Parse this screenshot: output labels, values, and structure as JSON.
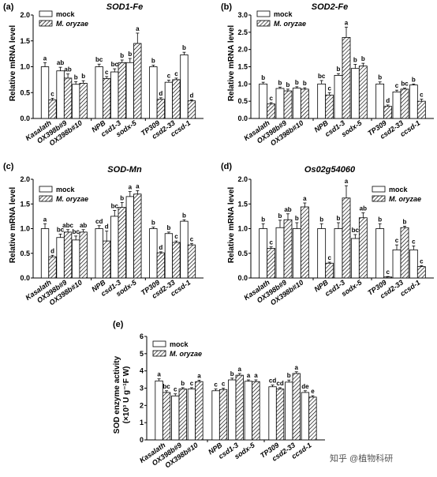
{
  "colors": {
    "mock": "#ffffff",
    "treated_hatch": "#000000",
    "axis": "#000000",
    "error": "#000000"
  },
  "legend": {
    "mock": "mock",
    "treated": "M. oryzae"
  },
  "watermark": "知乎 @植物科研",
  "chart_data": [
    {
      "panel": "(a)",
      "type": "bar",
      "title": "SOD1-Fe",
      "ylabel": "Relative mRNA level",
      "ylim": [
        0,
        2.0
      ],
      "yticks": [
        "0.0",
        "0.5",
        "1.0",
        "1.5",
        "2.0"
      ],
      "legend_position": "top-left",
      "categories": [
        "Kasalath",
        "OX398b#9",
        "OX398b#10",
        "NPB",
        "csd1-3",
        "sodx-5",
        "TP309",
        "csd2-33",
        "ccsd-1"
      ],
      "groups": [
        [
          0,
          1,
          2
        ],
        [
          3,
          4,
          5
        ],
        [
          6,
          7,
          8
        ]
      ],
      "series": [
        {
          "name": "mock",
          "values": [
            1.0,
            0.92,
            0.66,
            1.0,
            0.9,
            1.08,
            1.0,
            0.7,
            1.23
          ],
          "errors": [
            0.08,
            0.07,
            0.05,
            0.05,
            0.06,
            0.08,
            0.03,
            0.04,
            0.05
          ],
          "letters": [
            "a",
            "ab",
            "b",
            "bc",
            "bc",
            "b",
            "b",
            "c",
            "b"
          ]
        },
        {
          "name": "M. oryzae",
          "values": [
            0.36,
            0.78,
            0.68,
            0.77,
            1.08,
            1.45,
            0.37,
            0.75,
            0.34
          ],
          "errors": [
            0.03,
            0.08,
            0.05,
            0.04,
            0.05,
            0.2,
            0.03,
            0.03,
            0.02
          ],
          "letters": [
            "c",
            "ab",
            "b",
            "c",
            "b",
            "a",
            "d",
            "c",
            "d"
          ]
        }
      ]
    },
    {
      "panel": "(b)",
      "type": "bar",
      "title": "SOD2-Fe",
      "ylabel": "Relative mRNA level",
      "ylim": [
        0,
        3.0
      ],
      "yticks": [
        "0.0",
        "0.5",
        "1.0",
        "1.5",
        "2.0",
        "2.5",
        "3.0"
      ],
      "legend_position": "top-left",
      "categories": [
        "Kasalath",
        "OX398b#9",
        "OX398b#10",
        "NPB",
        "csd1-3",
        "sodx-5",
        "TP309",
        "csd2-33",
        "ccsd-1"
      ],
      "groups": [
        [
          0,
          1,
          2
        ],
        [
          3,
          4,
          5
        ],
        [
          6,
          7,
          8
        ]
      ],
      "series": [
        {
          "name": "mock",
          "values": [
            1.0,
            0.87,
            0.88,
            1.0,
            1.25,
            1.45,
            1.0,
            0.77,
            0.97
          ],
          "errors": [
            0.05,
            0.04,
            0.04,
            0.1,
            0.05,
            0.12,
            0.06,
            0.05,
            0.03
          ],
          "letters": [
            "b",
            "b",
            "b",
            "bc",
            "b",
            "b",
            "b",
            "c",
            "b"
          ]
        },
        {
          "name": "M. oryzae",
          "values": [
            0.42,
            0.8,
            0.85,
            0.68,
            2.35,
            1.52,
            0.35,
            0.85,
            0.5
          ],
          "errors": [
            0.04,
            0.05,
            0.04,
            0.07,
            0.3,
            0.08,
            0.04,
            0.03,
            0.06
          ],
          "letters": [
            "c",
            "b",
            "b",
            "c",
            "a",
            "b",
            "d",
            "bc",
            "c"
          ]
        }
      ]
    },
    {
      "panel": "(c)",
      "type": "bar",
      "title": "SOD-Mn",
      "ylabel": "Relative mRNA level",
      "ylim": [
        0,
        2.0
      ],
      "yticks": [
        "0.0",
        "0.5",
        "1.0",
        "1.5",
        "2.0"
      ],
      "legend_position": "top-left",
      "categories": [
        "Kasalath",
        "OX398b#9",
        "OX398b#10",
        "NPB",
        "csd1-3",
        "sodx-5",
        "TP309",
        "csd2-33",
        "ccsd-1"
      ],
      "groups": [
        [
          0,
          1,
          2
        ],
        [
          3,
          4,
          5
        ],
        [
          6,
          7,
          8
        ]
      ],
      "series": [
        {
          "name": "mock",
          "values": [
            1.0,
            0.82,
            0.77,
            1.0,
            1.25,
            1.65,
            1.0,
            0.9,
            1.15
          ],
          "errors": [
            0.1,
            0.07,
            0.08,
            0.06,
            0.12,
            0.1,
            0.03,
            0.03,
            0.03
          ],
          "letters": [
            "a",
            "bc",
            "bc",
            "cd",
            "bc",
            "a",
            "b",
            "b",
            "b"
          ]
        },
        {
          "name": "M. oryzae",
          "values": [
            0.43,
            0.93,
            0.93,
            0.75,
            1.43,
            1.7,
            0.51,
            0.72,
            0.67
          ],
          "errors": [
            0.03,
            0.05,
            0.05,
            0.2,
            0.1,
            0.07,
            0.02,
            0.03,
            0.03
          ],
          "letters": [
            "d",
            "abc",
            "ab",
            "d",
            "b",
            "a",
            "d",
            "c",
            "c"
          ]
        }
      ]
    },
    {
      "panel": "(d)",
      "type": "bar",
      "title": "Os02g54060",
      "ylabel": "Relative mRNA level",
      "ylim": [
        0,
        2.0
      ],
      "yticks": [
        "0.0",
        "0.5",
        "1.0",
        "1.5",
        "2.0"
      ],
      "legend_position": "top-right",
      "categories": [
        "Kasalath",
        "OX398b#9",
        "OX398b#10",
        "NPB",
        "csd1-3",
        "sodx-5",
        "TP309",
        "csd2-33",
        "ccsd-1"
      ],
      "groups": [
        [
          0,
          1,
          2
        ],
        [
          3,
          4,
          5
        ],
        [
          6,
          7,
          8
        ]
      ],
      "series": [
        {
          "name": "mock",
          "values": [
            1.0,
            1.02,
            1.0,
            1.0,
            1.0,
            0.8,
            1.0,
            0.57,
            0.57
          ],
          "errors": [
            0.1,
            0.15,
            0.12,
            0.1,
            0.12,
            0.08,
            0.1,
            0.1,
            0.08
          ],
          "letters": [
            "b",
            "b",
            "b",
            "b",
            "b",
            "bc",
            "b",
            "c",
            "c"
          ]
        },
        {
          "name": "M. oryzae",
          "values": [
            0.6,
            1.18,
            1.44,
            0.3,
            1.62,
            1.22,
            0.02,
            1.02,
            0.23
          ],
          "errors": [
            0.03,
            0.12,
            0.08,
            0.02,
            0.25,
            0.1,
            0.01,
            0.03,
            0.02
          ],
          "letters": [
            "c",
            "ab",
            "a",
            "c",
            "a",
            "ab",
            "c",
            "b",
            "c"
          ]
        }
      ]
    },
    {
      "panel": "(e)",
      "type": "bar",
      "title": "",
      "ylabel": "SOD enzyme activity (×10³ U g⁻¹F W)",
      "ylim": [
        0,
        6
      ],
      "yticks": [
        "0",
        "1",
        "2",
        "3",
        "4",
        "5",
        "6"
      ],
      "legend_position": "top-left",
      "categories": [
        "Kasalath",
        "OX398b#9",
        "OX398b#10",
        "NPB",
        "csd1-3",
        "sodx-5",
        "TP309",
        "csd2-33",
        "ccsd-1"
      ],
      "groups": [
        [
          0,
          1,
          2
        ],
        [
          3,
          4,
          5
        ],
        [
          6,
          7,
          8
        ]
      ],
      "series": [
        {
          "name": "mock",
          "values": [
            3.42,
            2.55,
            2.95,
            2.85,
            3.48,
            3.4,
            3.08,
            3.35,
            2.75
          ],
          "errors": [
            0.12,
            0.12,
            0.08,
            0.1,
            0.1,
            0.08,
            0.1,
            0.12,
            0.1
          ],
          "letters": [
            "a",
            "c",
            "c",
            "c",
            "b",
            "a",
            "cd",
            "b",
            "de"
          ]
        },
        {
          "name": "M. oryzae",
          "values": [
            2.75,
            2.95,
            3.38,
            2.92,
            3.75,
            3.38,
            2.95,
            3.85,
            2.48
          ],
          "errors": [
            0.1,
            0.08,
            0.08,
            0.08,
            0.1,
            0.1,
            0.08,
            0.1,
            0.08
          ],
          "letters": [
            "bc",
            "b",
            "a",
            "c",
            "a",
            "a",
            "cd",
            "a",
            "e"
          ]
        }
      ]
    }
  ]
}
